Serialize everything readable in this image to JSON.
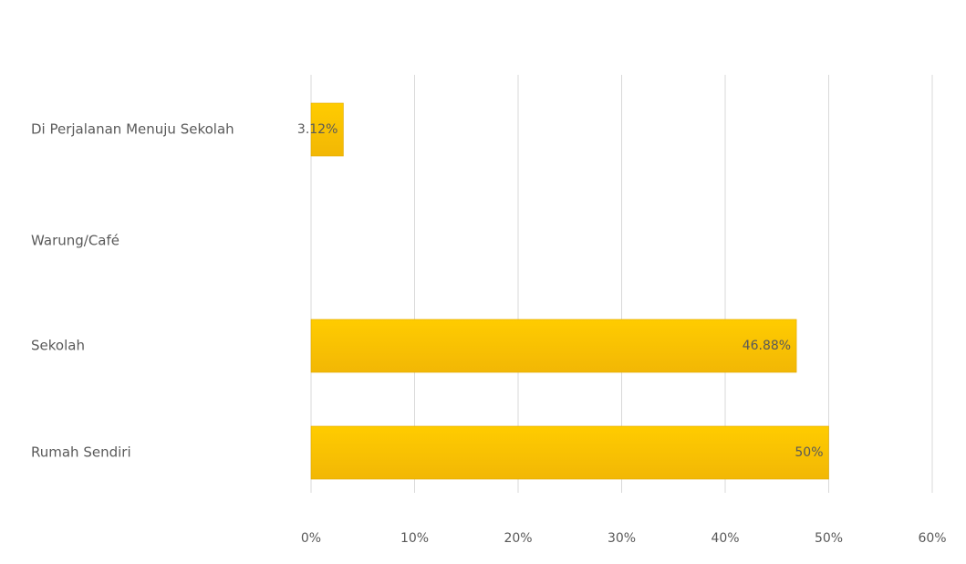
{
  "chart_data": {
    "type": "bar",
    "orientation": "horizontal",
    "categories": [
      "Di Perjalanan Menuju Sekolah",
      "Warung/Café",
      "Sekolah",
      "Rumah Sendiri"
    ],
    "values": [
      3.12,
      0,
      46.88,
      50
    ],
    "data_labels": [
      "3.12%",
      "",
      "46.88%",
      "50%"
    ],
    "xlim": [
      0,
      60
    ],
    "x_ticks": [
      0,
      10,
      20,
      30,
      40,
      50,
      60
    ],
    "x_tick_labels": [
      "0%",
      "10%",
      "20%",
      "30%",
      "40%",
      "50%",
      "60%"
    ],
    "grid": true,
    "legend": "none",
    "colors": {
      "bar_top": "#FFCC00",
      "bar_bottom": "#F2B705",
      "bar_edge": "#E0A800",
      "grid": "#D9D9D9",
      "text": "#595959"
    }
  }
}
